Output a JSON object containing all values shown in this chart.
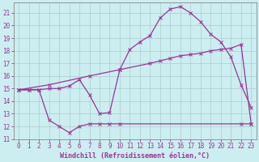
{
  "xlabel": "Windchill (Refroidissement éolien,°C)",
  "bg_color": "#cceef0",
  "grid_color": "#aacccc",
  "line_color": "#993399",
  "xlim": [
    -0.5,
    23.5
  ],
  "ylim": [
    11,
    21.8
  ],
  "xticks": [
    0,
    1,
    2,
    3,
    4,
    5,
    6,
    7,
    8,
    9,
    10,
    11,
    12,
    13,
    14,
    15,
    16,
    17,
    18,
    19,
    20,
    21,
    22,
    23
  ],
  "yticks": [
    11,
    12,
    13,
    14,
    15,
    16,
    17,
    18,
    19,
    20,
    21
  ],
  "line1_x": [
    0,
    1,
    2,
    3,
    4,
    5,
    6,
    7,
    8,
    9,
    10,
    11,
    12,
    13,
    14,
    15,
    16,
    17,
    18,
    19,
    20,
    21,
    22,
    23
  ],
  "line1_y": [
    14.9,
    14.9,
    14.9,
    15.0,
    15.0,
    15.2,
    15.7,
    14.5,
    13.0,
    13.1,
    16.5,
    18.1,
    18.7,
    19.2,
    20.6,
    21.3,
    21.5,
    21.0,
    20.3,
    19.3,
    18.7,
    17.5,
    15.3,
    13.5
  ],
  "line2_x": [
    0,
    3,
    7,
    10,
    13,
    14,
    15,
    16,
    17,
    18,
    19,
    20,
    21,
    22,
    23
  ],
  "line2_y": [
    14.9,
    15.3,
    16.0,
    16.5,
    17.0,
    17.2,
    17.4,
    17.6,
    17.7,
    17.8,
    18.0,
    18.1,
    18.2,
    18.5,
    12.2
  ],
  "line3_x": [
    0,
    1,
    2,
    3,
    4,
    5,
    6,
    7,
    8,
    9,
    10,
    22,
    23
  ],
  "line3_y": [
    14.9,
    14.9,
    14.9,
    12.5,
    12.0,
    11.5,
    12.0,
    12.2,
    12.2,
    12.2,
    12.2,
    12.2,
    12.2
  ],
  "marker": "x",
  "marker_size": 2.5,
  "linewidth": 0.9,
  "tick_fontsize": 5.5,
  "xlabel_fontsize": 6.0
}
